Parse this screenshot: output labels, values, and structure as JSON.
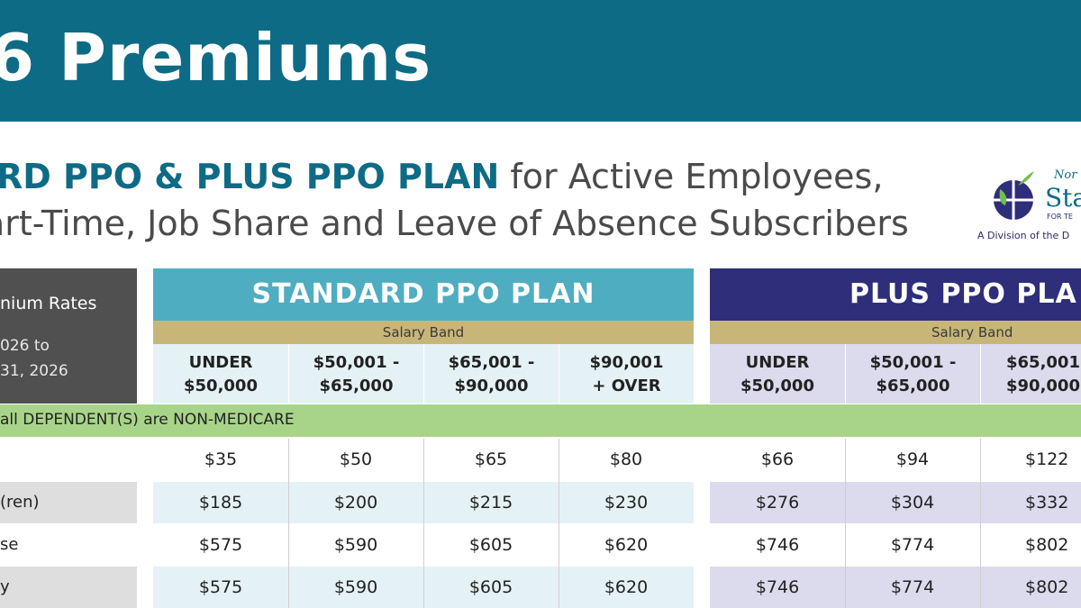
{
  "banner": {
    "title": "6 Premiums"
  },
  "subtitle": {
    "line1_highlight": "RD PPO & PLUS PPO PLAN",
    "line1_rest": " for Active Employees,",
    "line2": "art-Time, Job Share and Leave of Absence Subscribers"
  },
  "logo": {
    "small_text": "Nor",
    "word": "Sta",
    "under_word": "FOR TE",
    "tagline": "A Division of the D",
    "icon": "apple-globe-icon"
  },
  "corner": {
    "title": "nium Rates",
    "line2": "026 to",
    "line3": "31, 2026"
  },
  "standard_plan": {
    "title": "STANDARD PPO PLAN",
    "band_label": "Salary Band",
    "columns": [
      [
        "UNDER",
        "$50,000"
      ],
      [
        "$50,001 -",
        "$65,000"
      ],
      [
        "$65,001  -",
        "$90,000"
      ],
      [
        "$90,001",
        "+ OVER"
      ]
    ]
  },
  "plus_plan": {
    "title": "PLUS PPO PLA",
    "band_label": "Salary Band",
    "columns": [
      [
        "UNDER",
        "$50,000"
      ],
      [
        "$50,001 -",
        "$65,000"
      ],
      [
        "$65,001",
        "$90,000"
      ]
    ]
  },
  "section_label": "all DEPENDENT(S) are NON-MEDICARE",
  "rows": [
    {
      "label": "",
      "standard": [
        "$35",
        "$50",
        "$65",
        "$80"
      ],
      "plus": [
        "$66",
        "$94",
        "$122"
      ]
    },
    {
      "label": "(ren)",
      "standard": [
        "$185",
        "$200",
        "$215",
        "$230"
      ],
      "plus": [
        "$276",
        "$304",
        "$332"
      ]
    },
    {
      "label": "se",
      "standard": [
        "$575",
        "$590",
        "$605",
        "$620"
      ],
      "plus": [
        "$746",
        "$774",
        "$802"
      ]
    },
    {
      "label": "y",
      "standard": [
        "$575",
        "$590",
        "$605",
        "$620"
      ],
      "plus": [
        "$746",
        "$774",
        "$802"
      ]
    }
  ],
  "colors": {
    "banner": "#0e6b85",
    "standard_header": "#4fadc1",
    "plus_header": "#2e2e7a",
    "salary_band": "#c8b679",
    "section_bar": "#a8d48a"
  }
}
